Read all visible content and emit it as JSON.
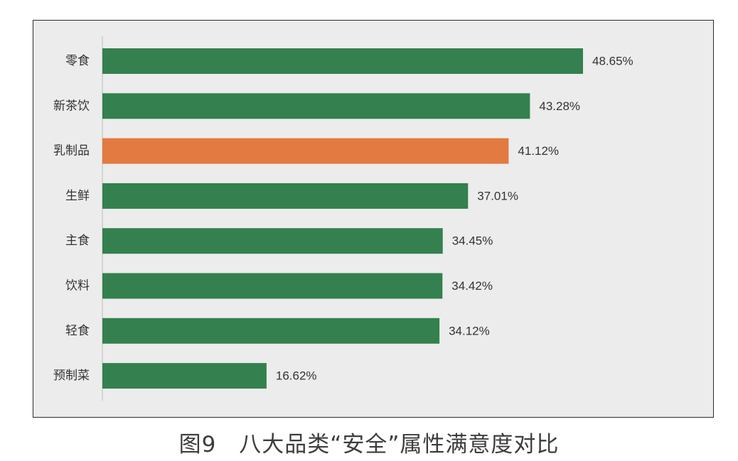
{
  "chart_data": {
    "type": "bar",
    "orientation": "horizontal",
    "categories": [
      "零食",
      "新茶饮",
      "乳制品",
      "生鲜",
      "主食",
      "饮料",
      "轻食",
      "预制菜"
    ],
    "values": [
      48.65,
      43.28,
      41.12,
      37.01,
      34.45,
      34.42,
      34.12,
      16.62
    ],
    "value_labels": [
      "48.65%",
      "43.28%",
      "41.12%",
      "37.01%",
      "34.45%",
      "34.42%",
      "34.12%",
      "16.62%"
    ],
    "xlim": [
      0,
      50
    ],
    "highlight_index": 2,
    "colors": {
      "default_bar": "#34804e",
      "highlight_bar": "#e37a41",
      "background": "#ececec"
    },
    "grid": false,
    "legend": "none"
  },
  "caption": "图9　八大品类“安全”属性满意度对比"
}
